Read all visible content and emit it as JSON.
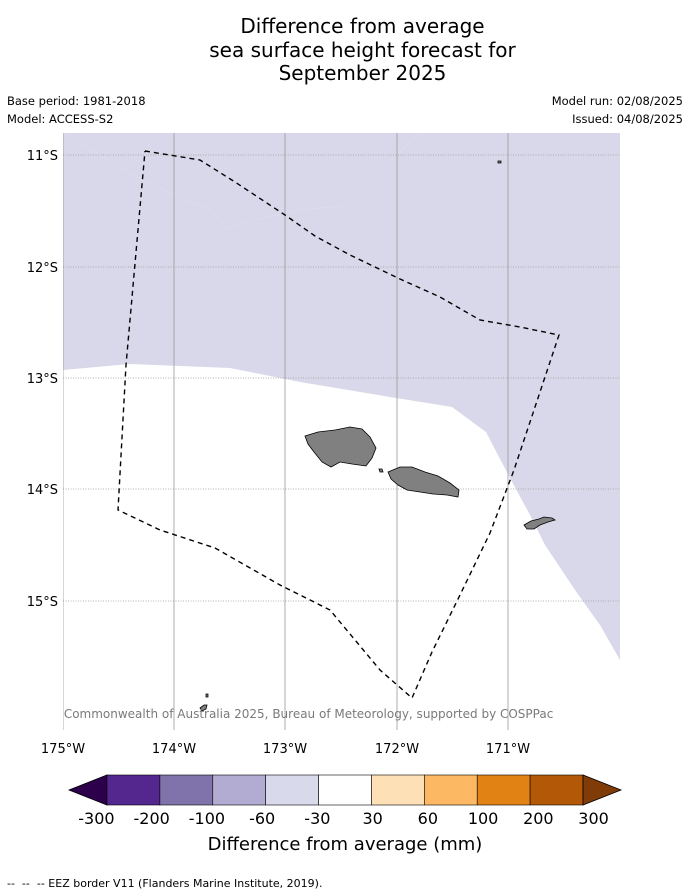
{
  "title_lines": [
    "Difference from average",
    "sea surface height forecast for",
    "September 2025"
  ],
  "meta": {
    "base_period": "Base period: 1981-2018",
    "model": "Model: ACCESS-S2",
    "model_run": "Model run: 02/08/2025",
    "issued": "Issued: 04/08/2025"
  },
  "map": {
    "lon_ticks": [
      "175°W",
      "174°W",
      "173°W",
      "172°W",
      "171°W"
    ],
    "lat_ticks": [
      "11°S",
      "12°S",
      "13°S",
      "14°S",
      "15°S"
    ],
    "copyright": "© Commonwealth of Australia 2025, Bureau of Meteorology, supported by COSPPac",
    "land_color": "#808080",
    "anomaly_fill_color": "#d8d8ea",
    "anomaly_fill_category": "-60 to -30"
  },
  "colorbar": {
    "title": "Difference from average (mm)",
    "tick_labels": [
      "-300",
      "-200",
      "-100",
      "-60",
      "-30",
      "30",
      "60",
      "100",
      "200",
      "300"
    ],
    "colors": [
      "#54278f",
      "#8073ac",
      "#b2abd2",
      "#d8daeb",
      "#ffffff",
      "#fee0b6",
      "#fdb863",
      "#e08214",
      "#b35806"
    ],
    "under_color": "#2d004b",
    "over_color": "#7f3b08"
  },
  "footer": "--  --  -- EEZ border V11 (Flanders Marine Institute, 2019)."
}
